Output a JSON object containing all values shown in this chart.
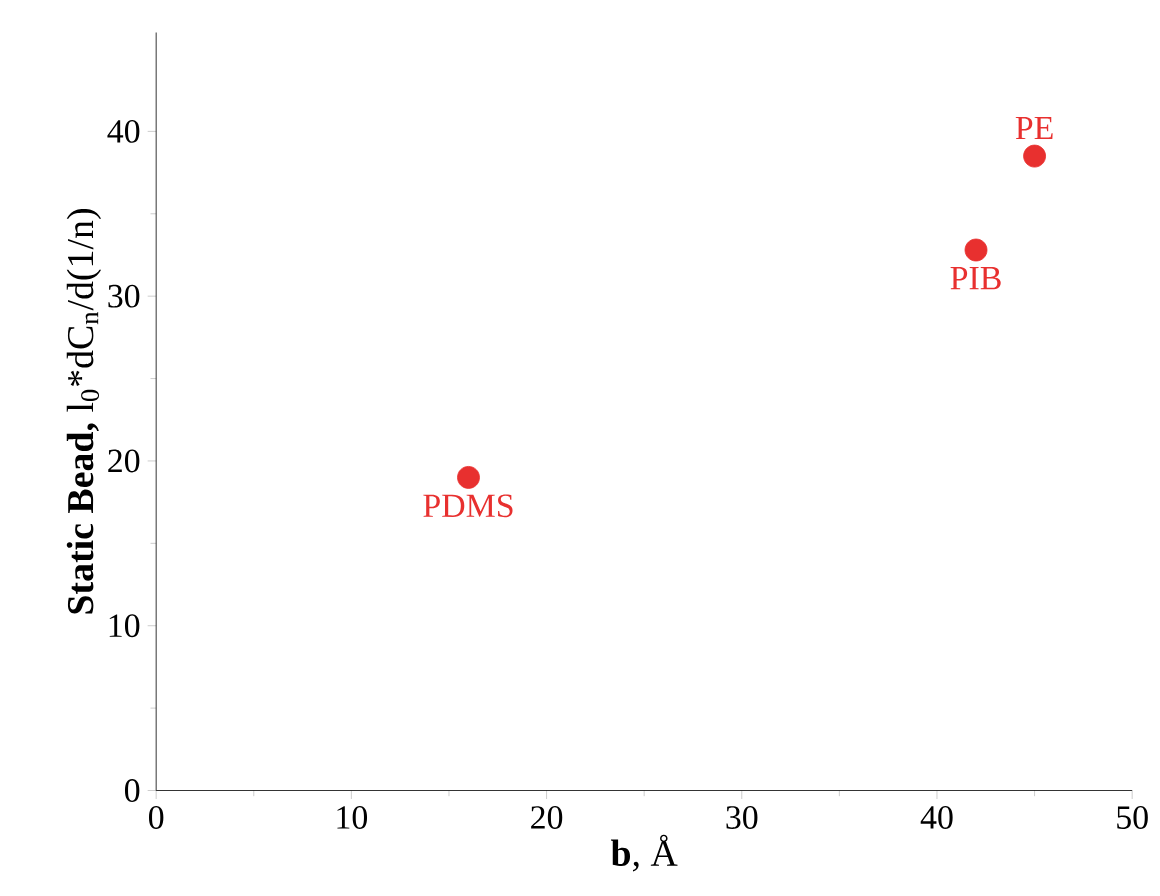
{
  "chart_data": {
    "type": "scatter",
    "xlabel": "**b**, Å",
    "ylabel": "**Static Bead,** l$_{0}$*dC$_{n}$/d(1/n)",
    "x": [
      16,
      42,
      45
    ],
    "values": [
      19,
      32.8,
      38.5
    ],
    "color": "#e8302f",
    "marker": "circle",
    "xlim": [
      0,
      50
    ],
    "ylim": [
      0,
      46
    ],
    "xticks": [
      0,
      10,
      20,
      30,
      40,
      50
    ],
    "yticks": [
      0,
      10,
      20,
      30,
      40
    ],
    "annotations": [
      {
        "text": "PDMS",
        "x": 16,
        "y": 19
      },
      {
        "text": "PIB",
        "x": 42,
        "y": 32.8
      },
      {
        "text": "PE",
        "x": 45,
        "y": 38.5
      }
    ]
  }
}
